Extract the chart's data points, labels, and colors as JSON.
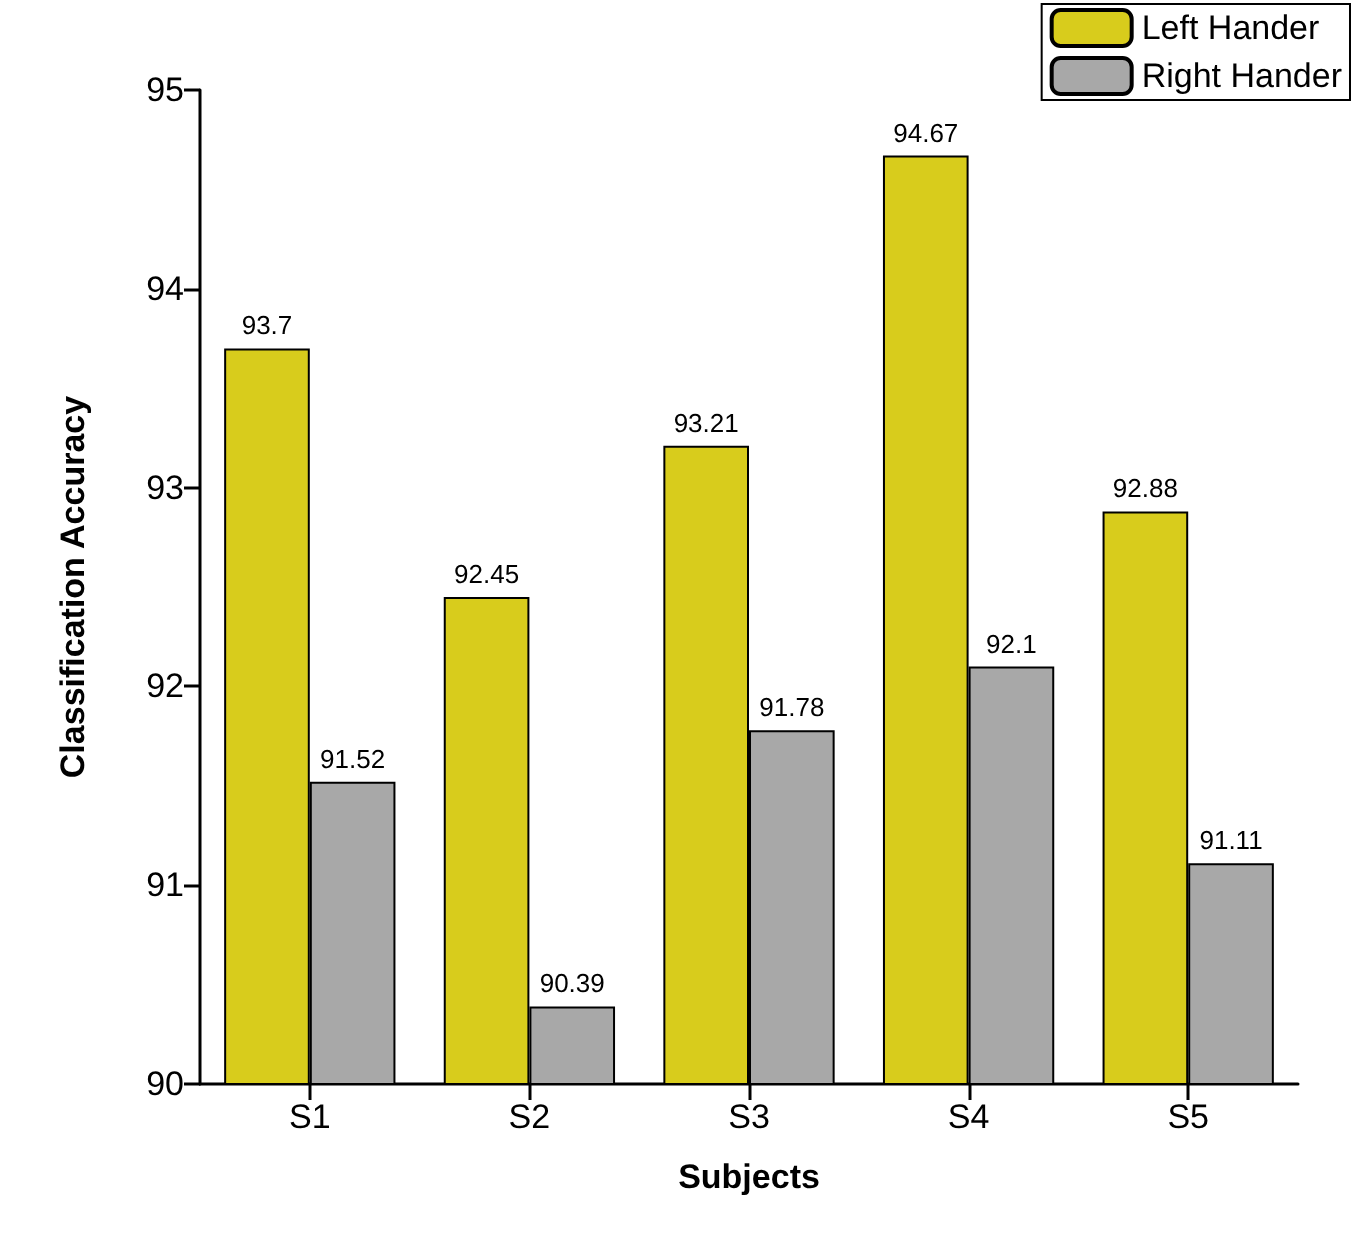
{
  "chart_data": {
    "type": "bar",
    "xlabel": "Subjects",
    "ylabel": "Classification Accuracy",
    "categories": [
      "S1",
      "S2",
      "S3",
      "S4",
      "S5"
    ],
    "series": [
      {
        "name": "Left Hander",
        "color": "#d8cc1c",
        "values": [
          93.7,
          92.45,
          93.21,
          94.67,
          92.88
        ]
      },
      {
        "name": "Right Hander",
        "color": "#a8a8a8",
        "values": [
          91.52,
          90.39,
          91.78,
          92.1,
          91.11
        ]
      }
    ],
    "ylim": [
      90,
      95
    ],
    "yticks": [
      90,
      91,
      92,
      93,
      94,
      95
    ],
    "data_labels": true,
    "grid": false,
    "legend": "top right"
  }
}
